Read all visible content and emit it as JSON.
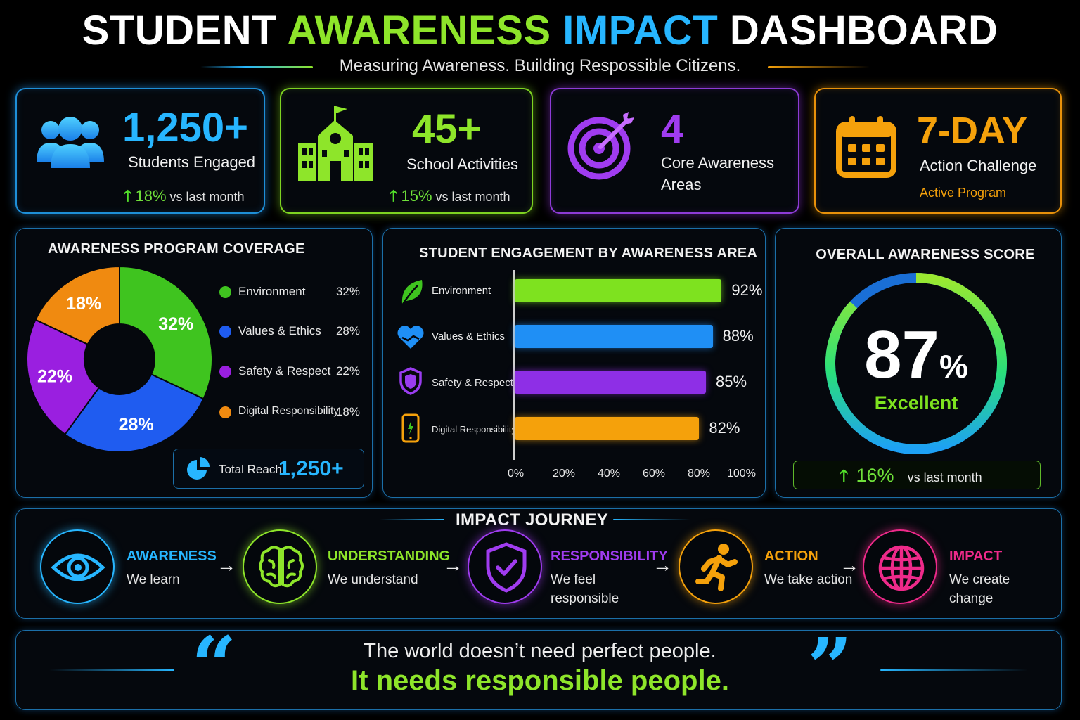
{
  "header": {
    "title_parts": [
      "STUDENT ",
      "AWARENESS ",
      "IMPACT ",
      "DASHBOARD"
    ],
    "subtitle": "Measuring Awareness. Building Respossible Citizens."
  },
  "stats": [
    {
      "value": "1,250+",
      "label": "Students Engaged",
      "trend_pct": "18%",
      "trend_text": "vs last month",
      "color": "#27b6ff",
      "icon": "users-icon"
    },
    {
      "value": "45+",
      "label": "School Activities",
      "trend_pct": "15%",
      "trend_text": "vs last month",
      "color": "#8ee52a",
      "icon": "school-icon"
    },
    {
      "value": "4",
      "label_line1": "Core Awareness",
      "label_line2": "Areas",
      "color": "#a03cf0",
      "icon": "target-icon"
    },
    {
      "value": "7-DAY",
      "label": "Action Challenge",
      "sub": "Active Program",
      "color": "#f5a10b",
      "icon": "calendar-icon"
    }
  ],
  "coverage": {
    "title": "AWARENESS PROGRAM COVERAGE",
    "total_label": "Total Reach",
    "total_value": "1,250+"
  },
  "engagement": {
    "title": "STUDENT ENGAGEMENT BY AWARENESS AREA"
  },
  "score": {
    "title": "OVERALL AWARENESS SCORE",
    "value": "87",
    "unit": "%",
    "rating": "Excellent",
    "fraction": 0.87,
    "trend_pct": "16%",
    "trend_text": "vs last month"
  },
  "journey": {
    "title": "IMPACT JOURNEY",
    "steps": [
      {
        "title": "AWARENESS",
        "desc1": "We learn",
        "desc2": "",
        "color": "#27b6ff",
        "icon": "eye-icon"
      },
      {
        "title": "UNDERSTANDING",
        "desc1": "We understand",
        "desc2": "",
        "color": "#8ee52a",
        "icon": "brain-icon"
      },
      {
        "title": "RESPONSIBILITY",
        "desc1": "We feel",
        "desc2": "responsible",
        "color": "#a03cf0",
        "icon": "shield-check-icon"
      },
      {
        "title": "ACTION",
        "desc1": "We take action",
        "desc2": "",
        "color": "#f5a10b",
        "icon": "running-person-icon"
      },
      {
        "title": "IMPACT",
        "desc1": "We create",
        "desc2": "change",
        "color": "#ee2a8a",
        "icon": "globe-icon"
      }
    ]
  },
  "quote": {
    "line1": "The world doesn’t need perfect people.",
    "line2": "It needs responsible people.",
    "open_mark": "“",
    "close_mark": "”"
  },
  "chart_data": [
    {
      "type": "pie",
      "categories": [
        "Environment",
        "Values & Ethics",
        "Safety & Respect",
        "Digital Responsibility"
      ],
      "values": [
        32,
        28,
        22,
        18
      ],
      "labels": [
        "32%",
        "28%",
        "22%",
        "18%"
      ],
      "colors": [
        "#3fc41f",
        "#1f5cf0",
        "#9a1fe0",
        "#f08a10"
      ],
      "title": "AWARENESS PROGRAM COVERAGE",
      "legend": "right"
    },
    {
      "type": "bar",
      "orientation": "horizontal",
      "categories": [
        "Environment",
        "Values & Ethics",
        "Safety & Respect",
        "Digital Responsibility"
      ],
      "values": [
        92,
        88,
        85,
        82
      ],
      "labels": [
        "92%",
        "88%",
        "85%",
        "82%"
      ],
      "colors": [
        "#7ee21f",
        "#1f8ff5",
        "#8e2fe6",
        "#f5a10b"
      ],
      "icons": [
        "leaf-icon",
        "heart-hands-icon",
        "shield-icon",
        "phone-icon"
      ],
      "xlim": [
        0,
        100
      ],
      "xticks": [
        "0%",
        "20%",
        "40%",
        "60%",
        "80%",
        "100%"
      ],
      "title": "STUDENT ENGAGEMENT BY AWARENESS AREA",
      "grid": false
    }
  ]
}
